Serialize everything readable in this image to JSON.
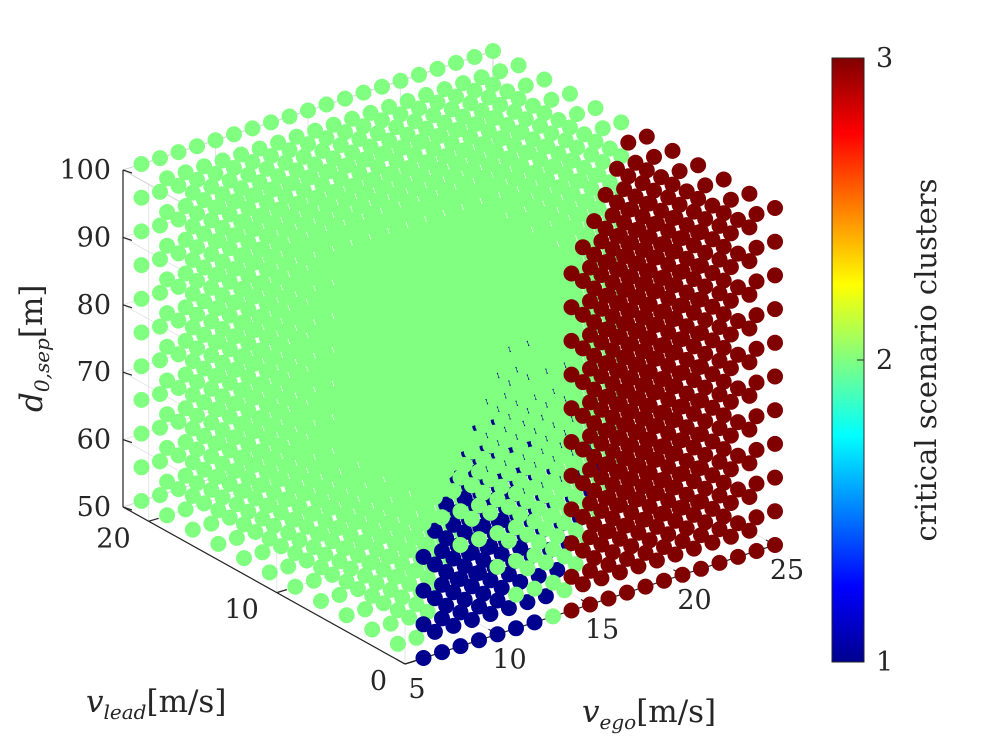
{
  "chart_data": {
    "type": "scatter3d",
    "title": "",
    "axes": {
      "x": {
        "label_main": "v",
        "label_sub": "ego",
        "label_unit": "[m/s]",
        "range": [
          5,
          25
        ],
        "ticks": [
          5,
          10,
          15,
          20,
          25
        ]
      },
      "y": {
        "label_main": "v",
        "label_sub": "lead",
        "label_unit": "[m/s]",
        "range": [
          0,
          22
        ],
        "ticks": [
          0,
          10,
          20
        ]
      },
      "z": {
        "label_main": "d",
        "label_sub": "0,sep",
        "label_unit": "[m]",
        "range": [
          50,
          100
        ],
        "ticks": [
          50,
          60,
          70,
          80,
          90,
          100
        ]
      }
    },
    "grid": {
      "v_ego": [
        6,
        7,
        8,
        9,
        10,
        11,
        12,
        13,
        14,
        15,
        16,
        17,
        18,
        19,
        20,
        21,
        22,
        23,
        24,
        25
      ],
      "v_lead": [
        0,
        2,
        4,
        6,
        8,
        10,
        12,
        14,
        16,
        18,
        20,
        22
      ],
      "d_0_sep": [
        50,
        55,
        60,
        65,
        70,
        75,
        80,
        85,
        90,
        95,
        100
      ]
    },
    "cluster_rule": "cluster 1 where v_ego - v_lead >= 6 and d_0_sep < 70 - 3*(v_ego - v_lead - 6); cluster 3 where v_ego - v_lead >= 14 and d_0_sep >= 70 - 3*(v_ego - v_lead - 6); otherwise cluster 2",
    "colorbar": {
      "label": "critical scenario clusters",
      "range": [
        1,
        3
      ],
      "ticks": [
        1,
        2,
        3
      ],
      "colormap": [
        "#00008f",
        "#0000ff",
        "#0080ff",
        "#00ffff",
        "#80ff80",
        "#ffff00",
        "#ff8000",
        "#ff0000",
        "#800000"
      ]
    },
    "cluster_colors": {
      "1": "#00008f",
      "2": "#80ff80",
      "3": "#800000"
    }
  }
}
